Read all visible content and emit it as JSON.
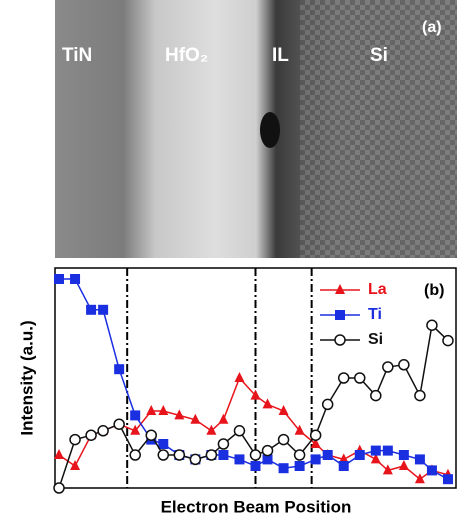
{
  "image": {
    "labels": [
      "TiN",
      "HfO₂",
      "IL",
      "Si"
    ],
    "panel_label": "(a)"
  },
  "chart_data": {
    "type": "line",
    "panel_label": "(b)",
    "y_label": "Intensity (a.u.)",
    "x_label": "Electron Beam Position",
    "x": [
      1,
      5,
      9,
      12,
      16,
      20,
      24,
      27,
      31,
      35,
      39,
      42,
      46,
      50,
      53,
      57,
      61,
      65,
      68,
      72,
      76,
      80,
      83,
      87,
      91,
      94,
      98
    ],
    "xlim": [
      0,
      100
    ],
    "ylim": [
      0,
      100
    ],
    "boundaries": [
      18,
      50,
      64
    ],
    "legend": "upper right",
    "series": [
      {
        "name": "La",
        "color": "#e8141c",
        "marker": "triangle",
        "values": [
          15,
          10,
          24,
          26,
          29,
          26,
          35,
          35,
          33,
          31,
          26,
          31,
          50,
          42,
          38,
          35,
          26,
          20,
          15,
          13,
          17,
          13,
          8,
          10,
          4,
          8,
          6
        ]
      },
      {
        "name": "Ti",
        "color": "#1a2fe0",
        "marker": "square",
        "values": [
          95,
          95,
          81,
          81,
          54,
          33,
          22,
          20,
          15,
          13,
          15,
          15,
          13,
          10,
          13,
          9,
          10,
          13,
          15,
          10,
          15,
          17,
          17,
          15,
          13,
          8,
          4
        ]
      },
      {
        "name": "Si",
        "color": "#111111",
        "marker": "circle",
        "values": [
          0,
          22,
          24,
          26,
          29,
          15,
          24,
          15,
          15,
          13,
          15,
          20,
          26,
          15,
          17,
          22,
          15,
          24,
          38,
          50,
          50,
          42,
          55,
          56,
          42,
          74,
          67
        ]
      }
    ]
  }
}
